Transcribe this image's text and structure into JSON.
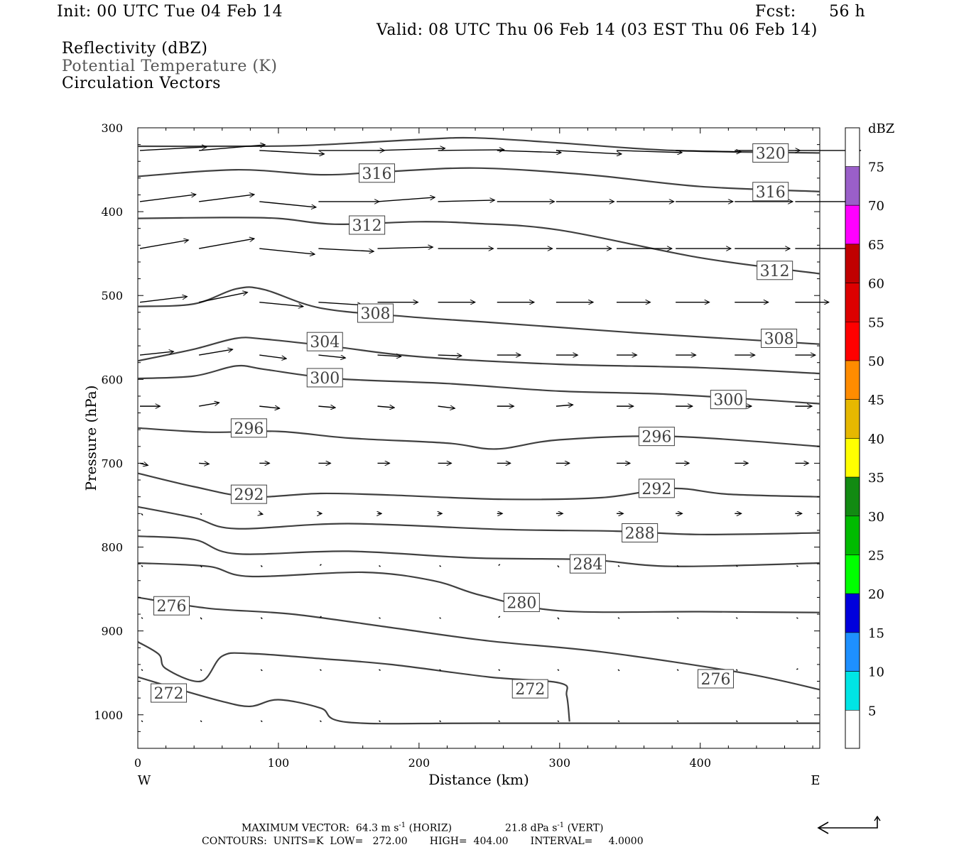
{
  "header": {
    "init": "Init: 00 UTC Tue 04 Feb 14",
    "fcst_label": "Fcst:",
    "fcst_value": "56 h",
    "valid": "Valid: 08 UTC Thu 06 Feb 14 (03 EST Thu 06 Feb 14)",
    "layer1": "Reflectivity (dBZ)",
    "layer2": "Potential Temperature (K)",
    "layer3": "Circulation Vectors"
  },
  "footer": {
    "max_vec_prefix": "MAXIMUM VECTOR:  64.3 m s",
    "exp": "-1",
    "horiz_tail": " (HORIZ)",
    "vert_prefix": "21.8 dPa s",
    "vert_tail": " (VERT)",
    "contours": "CONTOURS:  UNITS=K  LOW=   272.00       HIGH=  404.00       INTERVAL=     4.0000"
  },
  "chart_data": {
    "type": "line",
    "xlabel": "Distance (km)",
    "ylabel": "Pressure (hPa)",
    "xlim": [
      0,
      485
    ],
    "ylim": [
      1040,
      300
    ],
    "xticks": [
      0,
      100,
      200,
      300,
      400
    ],
    "yticks": [
      300,
      400,
      500,
      600,
      700,
      800,
      900,
      1000
    ],
    "x_end_labels": {
      "left": "W",
      "right": "E"
    },
    "contours": [
      {
        "level": "320",
        "labels": [
          [
            450,
            330
          ]
        ],
        "points": [
          [
            0,
            322
          ],
          [
            60,
            322
          ],
          [
            120,
            321
          ],
          [
            200,
            314
          ],
          [
            240,
            312
          ],
          [
            300,
            318
          ],
          [
            380,
            327
          ],
          [
            485,
            330
          ]
        ]
      },
      {
        "level": "316",
        "labels": [
          [
            170,
            354
          ],
          [
            450,
            376
          ]
        ],
        "points": [
          [
            0,
            358
          ],
          [
            70,
            350
          ],
          [
            130,
            356
          ],
          [
            170,
            353
          ],
          [
            240,
            348
          ],
          [
            320,
            356
          ],
          [
            400,
            370
          ],
          [
            485,
            376
          ]
        ]
      },
      {
        "level": "312",
        "labels": [
          [
            163,
            416
          ],
          [
            453,
            470
          ]
        ],
        "points": [
          [
            0,
            408
          ],
          [
            60,
            407
          ],
          [
            100,
            408
          ],
          [
            140,
            415
          ],
          [
            200,
            412
          ],
          [
            240,
            414
          ],
          [
            300,
            422
          ],
          [
            400,
            455
          ],
          [
            485,
            474
          ]
        ]
      },
      {
        "level": "308",
        "labels": [
          [
            169,
            521
          ],
          [
            456,
            551
          ]
        ],
        "points": [
          [
            0,
            513
          ],
          [
            40,
            510
          ],
          [
            70,
            492
          ],
          [
            90,
            493
          ],
          [
            130,
            515
          ],
          [
            190,
            525
          ],
          [
            250,
            532
          ],
          [
            350,
            544
          ],
          [
            485,
            558
          ]
        ]
      },
      {
        "level": "304",
        "labels": [
          [
            133,
            555
          ]
        ],
        "points": [
          [
            0,
            578
          ],
          [
            40,
            564
          ],
          [
            70,
            551
          ],
          [
            90,
            552
          ],
          [
            140,
            561
          ],
          [
            200,
            573
          ],
          [
            300,
            582
          ],
          [
            400,
            586
          ],
          [
            485,
            593
          ]
        ]
      },
      {
        "level": "300",
        "labels": [
          [
            133,
            598
          ],
          [
            420,
            624
          ]
        ],
        "points": [
          [
            0,
            599
          ],
          [
            40,
            596
          ],
          [
            70,
            584
          ],
          [
            90,
            588
          ],
          [
            140,
            599
          ],
          [
            220,
            605
          ],
          [
            300,
            614
          ],
          [
            380,
            618
          ],
          [
            485,
            629
          ]
        ]
      },
      {
        "level": "296",
        "labels": [
          [
            79,
            658
          ],
          [
            369,
            668
          ]
        ],
        "points": [
          [
            0,
            658
          ],
          [
            50,
            663
          ],
          [
            100,
            662
          ],
          [
            150,
            670
          ],
          [
            220,
            676
          ],
          [
            255,
            683
          ],
          [
            300,
            672
          ],
          [
            380,
            668
          ],
          [
            485,
            680
          ]
        ]
      },
      {
        "level": "292",
        "labels": [
          [
            79,
            737
          ],
          [
            369,
            730
          ]
        ],
        "points": [
          [
            0,
            712
          ],
          [
            40,
            728
          ],
          [
            80,
            740
          ],
          [
            130,
            736
          ],
          [
            180,
            738
          ],
          [
            260,
            743
          ],
          [
            330,
            741
          ],
          [
            380,
            730
          ],
          [
            420,
            737
          ],
          [
            485,
            740
          ]
        ]
      },
      {
        "level": "288",
        "labels": [
          [
            357,
            783
          ]
        ],
        "points": [
          [
            0,
            752
          ],
          [
            40,
            765
          ],
          [
            70,
            778
          ],
          [
            150,
            772
          ],
          [
            260,
            779
          ],
          [
            340,
            781
          ],
          [
            400,
            785
          ],
          [
            485,
            783
          ]
        ]
      },
      {
        "level": "284",
        "labels": [
          [
            320,
            820
          ]
        ],
        "points": [
          [
            0,
            787
          ],
          [
            40,
            791
          ],
          [
            70,
            808
          ],
          [
            150,
            805
          ],
          [
            240,
            813
          ],
          [
            320,
            815
          ],
          [
            380,
            823
          ],
          [
            485,
            819
          ]
        ]
      },
      {
        "level": "280",
        "labels": [
          [
            273,
            866
          ]
        ],
        "points": [
          [
            0,
            819
          ],
          [
            50,
            823
          ],
          [
            80,
            835
          ],
          [
            160,
            830
          ],
          [
            210,
            840
          ],
          [
            245,
            858
          ],
          [
            300,
            876
          ],
          [
            400,
            877
          ],
          [
            485,
            878
          ]
        ]
      },
      {
        "level": "276",
        "labels": [
          [
            24,
            870
          ],
          [
            411,
            957
          ]
        ],
        "points": [
          [
            0,
            860
          ],
          [
            50,
            873
          ],
          [
            110,
            880
          ],
          [
            180,
            896
          ],
          [
            250,
            912
          ],
          [
            330,
            925
          ],
          [
            430,
            950
          ],
          [
            485,
            970
          ]
        ]
      },
      {
        "level": "272",
        "labels": [
          [
            22,
            974
          ],
          [
            279,
            969
          ]
        ],
        "points": [
          [
            0,
            955
          ],
          [
            30,
            970
          ],
          [
            60,
            984
          ],
          [
            80,
            990
          ],
          [
            100,
            982
          ],
          [
            130,
            992
          ],
          [
            150,
            1009
          ],
          [
            250,
            1010
          ],
          [
            485,
            1010
          ]
        ]
      }
    ],
    "cold_pocket_272": [
      [
        0,
        913
      ],
      [
        15,
        928
      ],
      [
        20,
        945
      ],
      [
        45,
        960
      ],
      [
        60,
        930
      ],
      [
        80,
        927
      ],
      [
        130,
        933
      ],
      [
        180,
        940
      ],
      [
        250,
        955
      ],
      [
        300,
        962
      ],
      [
        305,
        977
      ],
      [
        307,
        1008
      ]
    ],
    "vector_rows": [
      {
        "p": 327,
        "xs": [
          0,
          42,
          85,
          127,
          169,
          212,
          254,
          296,
          339,
          381,
          423,
          466
        ],
        "dx": [
          0.99,
          0.98,
          0.96,
          0.98,
          1.0,
          0.98,
          0.95,
          0.97,
          0.97,
          0.97,
          0.97,
          0.97
        ],
        "dy": [
          -5,
          -8,
          5,
          0,
          -3,
          -1,
          3,
          5,
          3,
          2,
          0,
          0
        ]
      },
      {
        "p": 388,
        "xs": [
          0,
          42,
          85,
          127,
          169,
          212,
          254,
          296,
          339,
          381,
          423,
          466
        ],
        "dx": [
          0.83,
          0.82,
          0.84,
          0.9,
          0.85,
          0.84,
          0.85,
          0.86,
          0.85,
          0.85,
          0.86,
          0.85
        ],
        "dy": [
          -10,
          -10,
          8,
          0,
          -6,
          -2,
          0,
          0,
          0,
          0,
          0,
          0
        ]
      },
      {
        "p": 444,
        "xs": [
          0,
          42,
          85,
          127,
          169,
          212,
          254,
          296,
          339,
          381,
          423,
          466
        ],
        "dx": [
          0.72,
          0.82,
          0.82,
          0.82,
          0.82,
          0.82,
          0.82,
          0.82,
          0.82,
          0.82,
          0.82,
          0.82
        ],
        "dy": [
          -12,
          -14,
          8,
          4,
          -2,
          0,
          0,
          0,
          0,
          0,
          0,
          0
        ]
      },
      {
        "p": 508,
        "xs": [
          0,
          42,
          85,
          127,
          169,
          212,
          254,
          296,
          339,
          381,
          423,
          466
        ],
        "dx": [
          0.7,
          0.72,
          0.65,
          0.65,
          0.6,
          0.55,
          0.55,
          0.55,
          0.5,
          0.5,
          0.5,
          0.5
        ],
        "dy": [
          -8,
          -14,
          6,
          4,
          0,
          0,
          0,
          0,
          0,
          0,
          0,
          0
        ]
      },
      {
        "p": 571,
        "xs": [
          0,
          42,
          85,
          127,
          169,
          212,
          254,
          296,
          339,
          381,
          423,
          466
        ],
        "dx": [
          0.5,
          0.5,
          0.4,
          0.4,
          0.35,
          0.35,
          0.35,
          0.32,
          0.3,
          0.3,
          0.3,
          0.3
        ],
        "dy": [
          -5,
          -8,
          5,
          4,
          2,
          1,
          0,
          0,
          0,
          0,
          0,
          0
        ]
      },
      {
        "p": 632,
        "xs": [
          0,
          42,
          85,
          127,
          169,
          212,
          254,
          296,
          339,
          381,
          423,
          466
        ],
        "dx": [
          0.3,
          0.3,
          0.3,
          0.25,
          0.25,
          0.25,
          0.25,
          0.25,
          0.25,
          0.25,
          0.25,
          0.25
        ],
        "dy": [
          0,
          -5,
          3,
          2,
          2,
          3,
          0,
          -2,
          0,
          0,
          0,
          0
        ]
      },
      {
        "p": 700,
        "xs": [
          0,
          42,
          85,
          127,
          169,
          212,
          254,
          296,
          339,
          381,
          423,
          466
        ],
        "dx": [
          0.12,
          0.15,
          0.15,
          0.18,
          0.18,
          0.2,
          0.2,
          0.2,
          0.2,
          0.2,
          0.2,
          0.2
        ],
        "dy": [
          3,
          1,
          0,
          0,
          0,
          0,
          0,
          0,
          0,
          0,
          0,
          0
        ]
      },
      {
        "p": 760,
        "xs": [
          0,
          42,
          85,
          127,
          169,
          212,
          254,
          296,
          339,
          381,
          423,
          466
        ],
        "dx": [
          0.02,
          0.03,
          0.05,
          0.05,
          0.06,
          0.06,
          0.08,
          0.1,
          0.1,
          0.1,
          0.1,
          0.1
        ],
        "dy": [
          4,
          2,
          1,
          0,
          0,
          0,
          0,
          0,
          0,
          0,
          0,
          0
        ]
      },
      {
        "p": 822,
        "xs": [
          0,
          42,
          85,
          127,
          169,
          212,
          254,
          296,
          339,
          381,
          423,
          466
        ],
        "dx": [
          0,
          0,
          0.01,
          0,
          0,
          0,
          0,
          0.01,
          0.02,
          0.04,
          0.04,
          0.04
        ],
        "dy": [
          0,
          4,
          3,
          -3,
          0,
          0,
          -3,
          4,
          0,
          0,
          0,
          0
        ]
      },
      {
        "p": 884,
        "xs": [
          0,
          42,
          85,
          127,
          169,
          212,
          254,
          296,
          339,
          381,
          423,
          466
        ],
        "dx": [
          0,
          0,
          0,
          0,
          0,
          0,
          0,
          0.01,
          0.01,
          0.02,
          0.02,
          0.02
        ],
        "dy": [
          0,
          4,
          3,
          -3,
          0,
          0,
          -3,
          4,
          0,
          0,
          0,
          0
        ]
      },
      {
        "p": 946,
        "xs": [
          0,
          42,
          85,
          127,
          169,
          212,
          254,
          296,
          339,
          381,
          423,
          466
        ],
        "dx": [
          0,
          0,
          0.02,
          0,
          0.02,
          0.02,
          0.02,
          0.02,
          0.02,
          0.02,
          0.02,
          0.02
        ],
        "dy": [
          0,
          0,
          3,
          0,
          0,
          0,
          0,
          0,
          3,
          0,
          0,
          -2
        ]
      },
      {
        "p": 1007,
        "xs": [
          0,
          42,
          85,
          127,
          169,
          212,
          254,
          296,
          339,
          381,
          423,
          466
        ],
        "dx": [
          0,
          0,
          0,
          0,
          0,
          0,
          0,
          0,
          0,
          0,
          0,
          0
        ],
        "dy": [
          0,
          0,
          0,
          0,
          0,
          0,
          0,
          0,
          0,
          0,
          0,
          0
        ]
      }
    ],
    "colorbar": {
      "title": "dBZ",
      "labels": [
        "75",
        "70",
        "65",
        "60",
        "55",
        "50",
        "45",
        "40",
        "35",
        "30",
        "25",
        "20",
        "15",
        "10",
        "5"
      ],
      "colors": [
        "#9a5fc9",
        "#ff00ff",
        "#c00000",
        "#dd0000",
        "#ff0000",
        "#ff8c00",
        "#e6b800",
        "#ffff00",
        "#128a12",
        "#00bb00",
        "#00ff00",
        "#0000dd",
        "#1e90ff",
        "#00e5e5"
      ]
    },
    "reference_vector": "arrow (max vector)"
  }
}
